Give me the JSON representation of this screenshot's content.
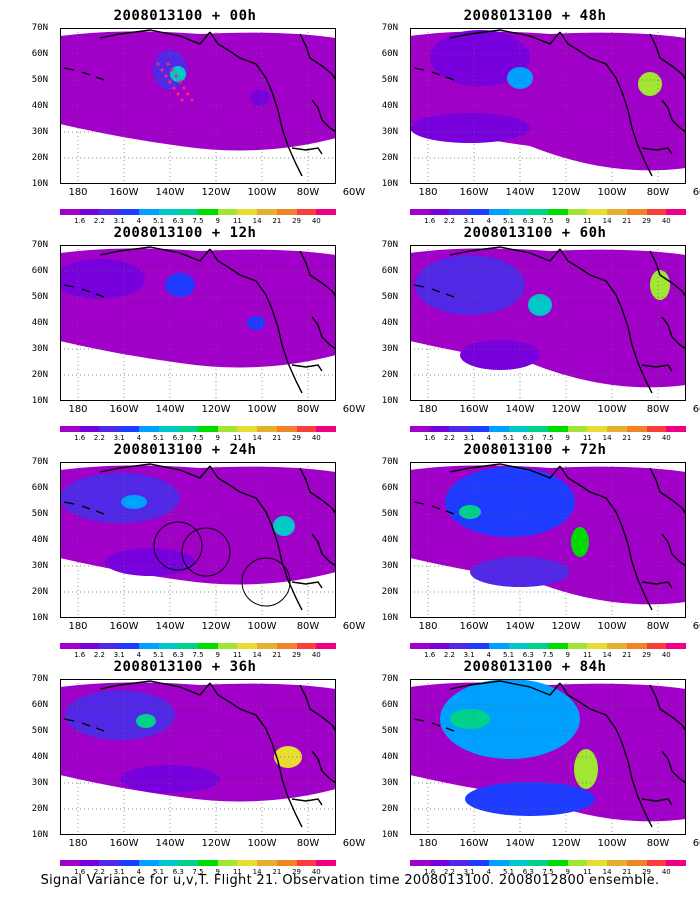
{
  "caption": "Signal Variance for u,v,T. Flight 21. Observation time 2008013100. 2008012800 ensemble.",
  "lat_labels": [
    "70N",
    "60N",
    "50N",
    "40N",
    "30N",
    "20N",
    "10N"
  ],
  "lon_labels": [
    "180",
    "160W",
    "140W",
    "120W",
    "100W",
    "80W",
    "60W"
  ],
  "colorbar": {
    "labels": [
      "1.6",
      "2.2",
      "3.1",
      "4",
      "5.1",
      "6.3",
      "7.5",
      "9",
      "11",
      "14",
      "21",
      "29",
      "40"
    ],
    "colors": [
      "#a000c8",
      "#7800dc",
      "#5028e6",
      "#1e3cff",
      "#00a0ff",
      "#00c8c8",
      "#00d28c",
      "#00dc00",
      "#a0e632",
      "#e6dc32",
      "#e6af2d",
      "#f08228",
      "#fa3c3c",
      "#f00082"
    ]
  },
  "panels": [
    {
      "title": "2008013100 + 00h"
    },
    {
      "title": "2008013100 + 48h"
    },
    {
      "title": "2008013100 + 12h"
    },
    {
      "title": "2008013100 + 60h"
    },
    {
      "title": "2008013100 + 24h"
    },
    {
      "title": "2008013100 + 72h"
    },
    {
      "title": "2008013100 + 36h"
    },
    {
      "title": "2008013100 + 84h"
    }
  ]
}
